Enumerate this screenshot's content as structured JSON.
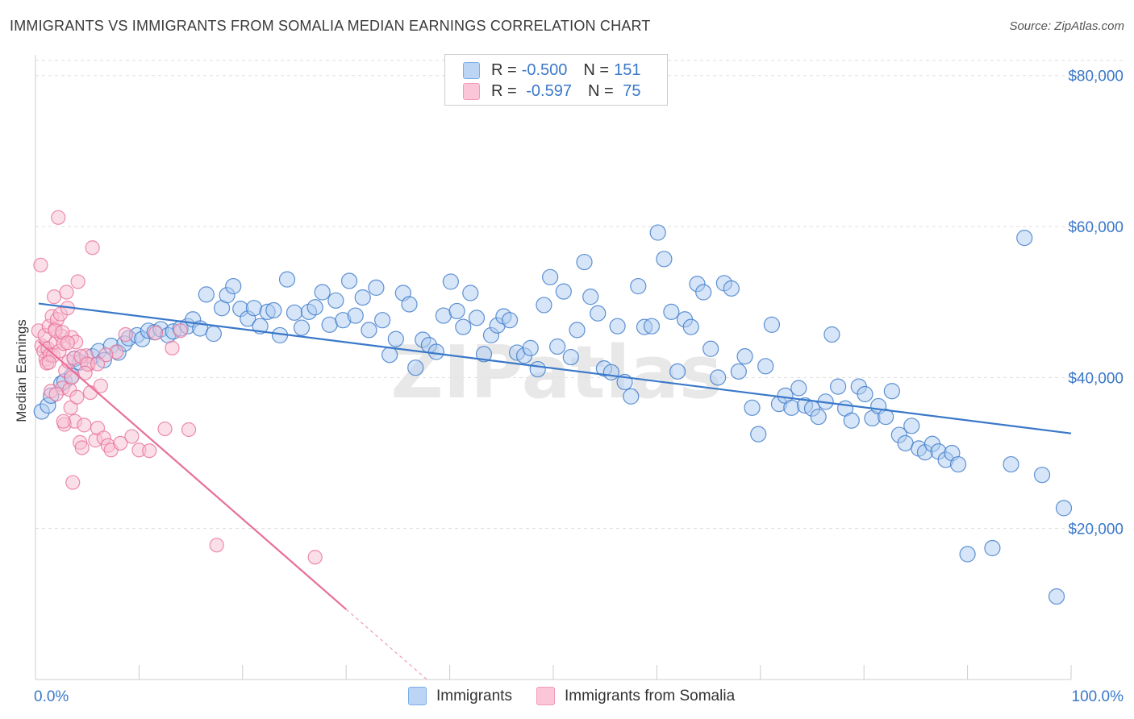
{
  "title": "IMMIGRANTS VS IMMIGRANTS FROM SOMALIA MEDIAN EARNINGS CORRELATION CHART",
  "source": "Source: ZipAtlas.com",
  "watermark": "ZIPatlas",
  "legend_stats": [
    {
      "r_label": "R = ",
      "r_value": "-0.500",
      "n_label": "N = ",
      "n_value": "151",
      "color": "#7aaee8",
      "fill": "#bcd5f5"
    },
    {
      "r_label": "R = ",
      "r_value": " -0.597",
      "n_label": "N = ",
      "n_value": " 75",
      "color": "#f29ab8",
      "fill": "#fbc7d8"
    }
  ],
  "chart_data": {
    "type": "scatter",
    "xlabel": "",
    "ylabel": "Median Earnings",
    "xlim": [
      0,
      100
    ],
    "ylim": [
      0,
      82000
    ],
    "x_tick_labels": [
      "0.0%",
      "100.0%"
    ],
    "y_ticks": [
      20000,
      40000,
      60000,
      80000
    ],
    "y_tick_labels": [
      "$20,000",
      "$40,000",
      "$60,000",
      "$80,000"
    ],
    "grid": true,
    "legend": "bottom",
    "series": [
      {
        "name": "Immigrants",
        "color": "#3a78c9",
        "fill": "#aecbef",
        "trend": {
          "x": [
            0.3,
            100
          ],
          "y": [
            49800,
            32600
          ]
        },
        "points": [
          [
            0.6,
            35500
          ],
          [
            1.2,
            36300
          ],
          [
            1.5,
            37600
          ],
          [
            2.5,
            39200
          ],
          [
            2.8,
            39500
          ],
          [
            3.5,
            40200
          ],
          [
            3.8,
            42500
          ],
          [
            4.3,
            42000
          ],
          [
            5.5,
            42800
          ],
          [
            6.1,
            43500
          ],
          [
            6.6,
            42300
          ],
          [
            7.3,
            44200
          ],
          [
            8.0,
            43300
          ],
          [
            8.6,
            44500
          ],
          [
            9.0,
            45200
          ],
          [
            9.8,
            45600
          ],
          [
            10.3,
            45100
          ],
          [
            10.9,
            46200
          ],
          [
            11.5,
            46000
          ],
          [
            12.1,
            46400
          ],
          [
            12.8,
            45600
          ],
          [
            13.3,
            46100
          ],
          [
            14.0,
            46500
          ],
          [
            14.7,
            46800
          ],
          [
            15.2,
            47700
          ],
          [
            15.9,
            46500
          ],
          [
            16.5,
            51000
          ],
          [
            17.2,
            45800
          ],
          [
            18.0,
            49200
          ],
          [
            18.5,
            50900
          ],
          [
            19.1,
            52100
          ],
          [
            19.8,
            49100
          ],
          [
            20.5,
            47800
          ],
          [
            21.1,
            49200
          ],
          [
            21.7,
            46800
          ],
          [
            22.4,
            48700
          ],
          [
            23.0,
            48900
          ],
          [
            23.6,
            45600
          ],
          [
            24.3,
            53000
          ],
          [
            25.0,
            48600
          ],
          [
            25.7,
            46600
          ],
          [
            26.4,
            48700
          ],
          [
            27.0,
            49300
          ],
          [
            27.7,
            51300
          ],
          [
            28.4,
            47000
          ],
          [
            29.0,
            50200
          ],
          [
            29.7,
            47600
          ],
          [
            30.3,
            52800
          ],
          [
            30.9,
            48200
          ],
          [
            31.6,
            50600
          ],
          [
            32.2,
            46300
          ],
          [
            32.9,
            51900
          ],
          [
            33.5,
            47600
          ],
          [
            34.2,
            43000
          ],
          [
            34.8,
            45100
          ],
          [
            35.5,
            51200
          ],
          [
            36.1,
            49700
          ],
          [
            36.7,
            41300
          ],
          [
            37.4,
            45000
          ],
          [
            38.0,
            44300
          ],
          [
            38.7,
            43400
          ],
          [
            39.4,
            48200
          ],
          [
            40.1,
            52700
          ],
          [
            40.7,
            48800
          ],
          [
            41.3,
            46700
          ],
          [
            42.0,
            51200
          ],
          [
            42.6,
            47900
          ],
          [
            43.3,
            43100
          ],
          [
            44.0,
            45600
          ],
          [
            44.6,
            46900
          ],
          [
            45.2,
            48100
          ],
          [
            45.8,
            47600
          ],
          [
            46.5,
            43300
          ],
          [
            47.2,
            42900
          ],
          [
            47.8,
            43900
          ],
          [
            48.5,
            41100
          ],
          [
            49.1,
            49600
          ],
          [
            49.7,
            53300
          ],
          [
            50.4,
            44100
          ],
          [
            51.0,
            51400
          ],
          [
            51.7,
            42700
          ],
          [
            52.3,
            46300
          ],
          [
            53.0,
            55300
          ],
          [
            53.6,
            50700
          ],
          [
            54.3,
            48500
          ],
          [
            54.9,
            41200
          ],
          [
            55.6,
            40700
          ],
          [
            56.2,
            46800
          ],
          [
            56.9,
            39400
          ],
          [
            57.5,
            37500
          ],
          [
            58.2,
            52100
          ],
          [
            58.8,
            46700
          ],
          [
            59.5,
            46800
          ],
          [
            60.1,
            59200
          ],
          [
            60.7,
            55700
          ],
          [
            61.4,
            48700
          ],
          [
            62.0,
            40800
          ],
          [
            62.7,
            47700
          ],
          [
            63.3,
            46700
          ],
          [
            63.9,
            52400
          ],
          [
            64.5,
            51300
          ],
          [
            65.2,
            43800
          ],
          [
            65.9,
            40000
          ],
          [
            66.5,
            52500
          ],
          [
            67.2,
            51800
          ],
          [
            67.9,
            40800
          ],
          [
            68.5,
            42800
          ],
          [
            69.2,
            36000
          ],
          [
            69.8,
            32500
          ],
          [
            70.5,
            41500
          ],
          [
            71.1,
            47000
          ],
          [
            71.8,
            36500
          ],
          [
            72.4,
            37600
          ],
          [
            73.0,
            36000
          ],
          [
            73.7,
            38600
          ],
          [
            74.3,
            36300
          ],
          [
            75.0,
            35900
          ],
          [
            75.6,
            34800
          ],
          [
            76.3,
            36800
          ],
          [
            76.9,
            45700
          ],
          [
            77.5,
            38800
          ],
          [
            78.2,
            35900
          ],
          [
            78.8,
            34300
          ],
          [
            79.5,
            38800
          ],
          [
            80.1,
            37800
          ],
          [
            80.8,
            34600
          ],
          [
            81.4,
            36200
          ],
          [
            82.1,
            34800
          ],
          [
            82.7,
            38200
          ],
          [
            83.4,
            32400
          ],
          [
            84.0,
            31300
          ],
          [
            84.6,
            33600
          ],
          [
            85.3,
            30600
          ],
          [
            85.9,
            30100
          ],
          [
            86.6,
            31200
          ],
          [
            87.2,
            30200
          ],
          [
            87.9,
            29100
          ],
          [
            88.5,
            30000
          ],
          [
            89.1,
            28500
          ],
          [
            90.0,
            16600
          ],
          [
            92.4,
            17400
          ],
          [
            94.2,
            28500
          ],
          [
            95.5,
            58500
          ],
          [
            97.2,
            27100
          ],
          [
            98.6,
            11000
          ],
          [
            99.3,
            22700
          ]
        ]
      },
      {
        "name": "Immigrants from Somalia",
        "color": "#e8709a",
        "fill": "#f8bfd2",
        "trend": {
          "x": [
            0.3,
            30.0
          ],
          "y": [
            44800,
            9300
          ]
        },
        "trend_dashed": {
          "x": [
            30.0,
            37.8
          ],
          "y": [
            9300,
            0
          ]
        },
        "points": [
          [
            0.3,
            46200
          ],
          [
            0.5,
            54900
          ],
          [
            0.6,
            44200
          ],
          [
            0.8,
            43500
          ],
          [
            0.9,
            45600
          ],
          [
            1.0,
            42400
          ],
          [
            1.1,
            41900
          ],
          [
            1.2,
            43800
          ],
          [
            1.3,
            46800
          ],
          [
            1.4,
            43000
          ],
          [
            1.5,
            38200
          ],
          [
            1.6,
            48100
          ],
          [
            1.7,
            42900
          ],
          [
            1.8,
            50700
          ],
          [
            1.9,
            46400
          ],
          [
            2.0,
            44700
          ],
          [
            2.1,
            47700
          ],
          [
            2.2,
            61200
          ],
          [
            2.3,
            43500
          ],
          [
            2.4,
            48400
          ],
          [
            2.5,
            45500
          ],
          [
            2.6,
            38600
          ],
          [
            2.7,
            44500
          ],
          [
            2.8,
            33800
          ],
          [
            2.9,
            40900
          ],
          [
            3.0,
            51300
          ],
          [
            3.1,
            49200
          ],
          [
            3.2,
            42100
          ],
          [
            3.3,
            38400
          ],
          [
            3.4,
            36000
          ],
          [
            3.5,
            45300
          ],
          [
            3.6,
            26100
          ],
          [
            3.7,
            42600
          ],
          [
            3.8,
            34200
          ],
          [
            3.9,
            44700
          ],
          [
            4.0,
            37400
          ],
          [
            4.1,
            52700
          ],
          [
            4.3,
            31400
          ],
          [
            4.5,
            30700
          ],
          [
            4.7,
            33700
          ],
          [
            4.9,
            42900
          ],
          [
            5.1,
            41700
          ],
          [
            5.3,
            38000
          ],
          [
            5.5,
            57200
          ],
          [
            5.8,
            31700
          ],
          [
            6.0,
            33300
          ],
          [
            6.3,
            38900
          ],
          [
            6.6,
            32000
          ],
          [
            7.0,
            31000
          ],
          [
            7.3,
            30400
          ],
          [
            7.8,
            43400
          ],
          [
            8.2,
            31300
          ],
          [
            8.7,
            45700
          ],
          [
            9.3,
            32200
          ],
          [
            10.0,
            30400
          ],
          [
            11.0,
            30300
          ],
          [
            11.6,
            45900
          ],
          [
            12.5,
            33200
          ],
          [
            13.2,
            43900
          ],
          [
            14.0,
            46200
          ],
          [
            14.8,
            33100
          ],
          [
            17.5,
            17800
          ],
          [
            27.0,
            16200
          ],
          [
            1.9,
            46200
          ],
          [
            2.6,
            46000
          ],
          [
            3.1,
            44600
          ],
          [
            4.4,
            42800
          ],
          [
            5.0,
            41800
          ],
          [
            6.8,
            43000
          ],
          [
            3.5,
            40000
          ],
          [
            2.0,
            37800
          ],
          [
            1.3,
            42000
          ],
          [
            4.8,
            40600
          ],
          [
            6.0,
            41800
          ],
          [
            2.7,
            34200
          ]
        ]
      }
    ]
  }
}
